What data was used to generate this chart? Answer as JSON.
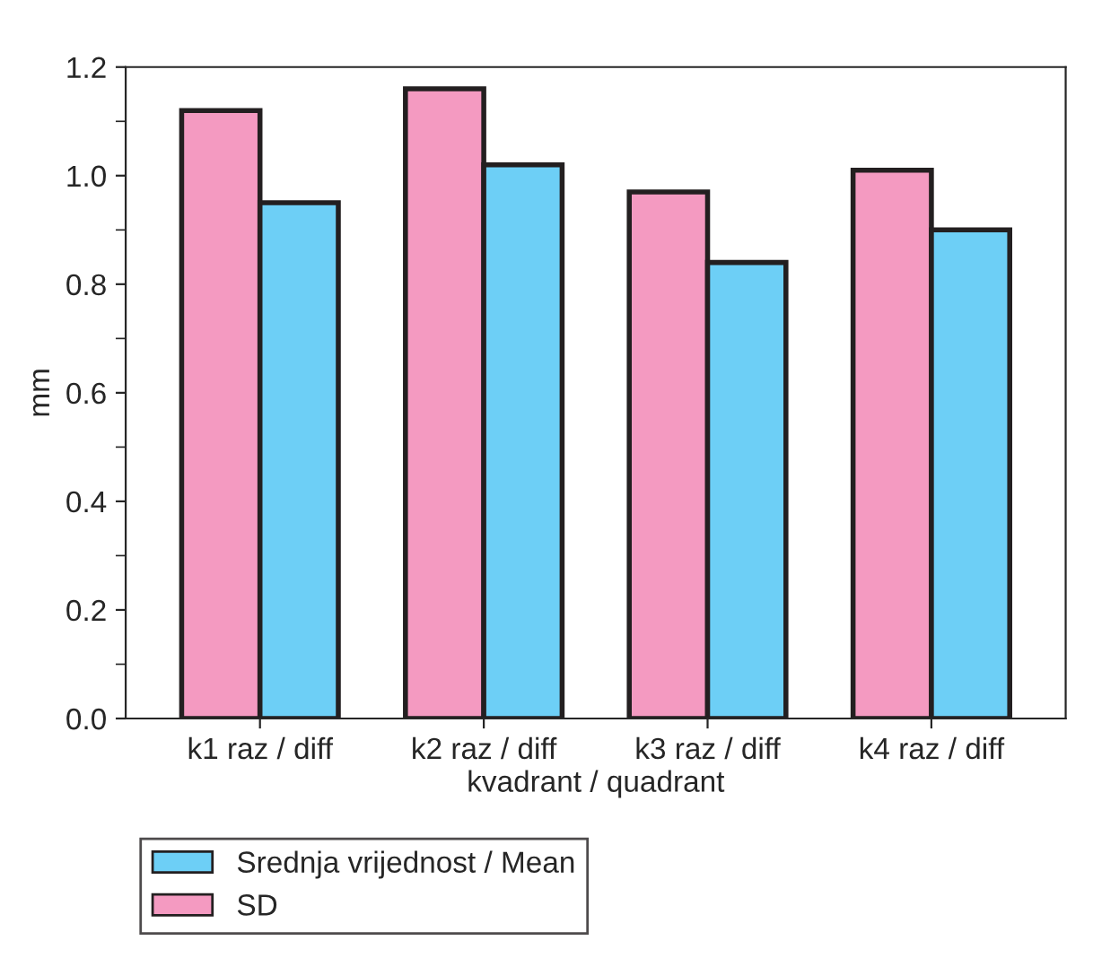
{
  "chart_data": {
    "type": "bar",
    "xlabel": "kvadrant / quadrant",
    "ylabel": "mm",
    "categories": [
      "k1 raz / diff",
      "k2 raz / diff",
      "k3 raz / diff",
      "k4 raz / diff"
    ],
    "series": [
      {
        "name": "SD",
        "color": "#f49ac1",
        "values": [
          1.12,
          1.16,
          0.97,
          1.01
        ]
      },
      {
        "name": "Srednja vrijednost / Mean",
        "color": "#6dcff6",
        "values": [
          0.95,
          1.02,
          0.84,
          0.9
        ]
      }
    ],
    "ylim": [
      0,
      1.2
    ],
    "yticks": [
      {
        "value": 0,
        "label": "0.0"
      },
      0.2,
      0.4,
      0.6,
      0.8,
      {
        "value": 1,
        "label": "1.0"
      },
      1.2
    ],
    "grid": false,
    "legend": "bottom"
  }
}
